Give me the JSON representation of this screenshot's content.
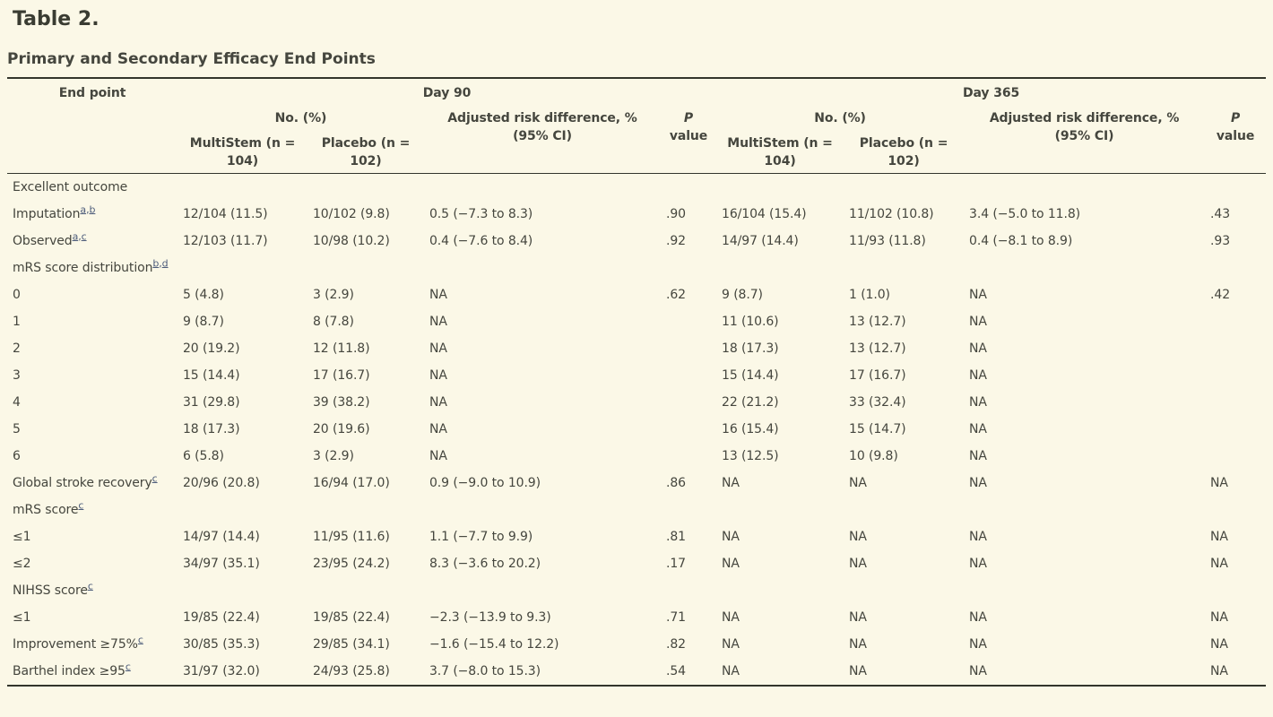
{
  "page": {
    "title": "Table 2.",
    "subtitle": "Primary and Secondary Efficacy End Points"
  },
  "colors": {
    "background": "#fbf8e7",
    "text": "#45463e",
    "rule": "#33352c",
    "footnote_link": "#4f5e7c"
  },
  "table": {
    "header": {
      "endpoint_label": "End point",
      "day90_label": "Day 90",
      "day365_label": "Day 365",
      "no_pct_label": "No. (%)",
      "ard_line1": "Adjusted risk difference, %",
      "ard_line2": "(95% CI)",
      "p_label": "P",
      "p_value_label": "value",
      "multistem_label": "MultiStem (n = 104)",
      "placebo_label": "Placebo (n = 102)"
    },
    "rows": [
      {
        "label": "Excellent outcome",
        "sup": "",
        "cells": [
          "",
          "",
          "",
          "",
          "",
          "",
          "",
          ""
        ]
      },
      {
        "label": "Imputation",
        "sup": "a,b",
        "cells": [
          "12/104 (11.5)",
          "10/102 (9.8)",
          "0.5 (−7.3 to 8.3)",
          ".90",
          "16/104 (15.4)",
          "11/102 (10.8)",
          "3.4 (−5.0 to 11.8)",
          ".43"
        ]
      },
      {
        "label": "Observed",
        "sup": "a,c",
        "cells": [
          "12/103 (11.7)",
          "10/98 (10.2)",
          "0.4 (−7.6 to 8.4)",
          ".92",
          "14/97 (14.4)",
          "11/93 (11.8)",
          "0.4 (−8.1 to 8.9)",
          ".93"
        ]
      },
      {
        "label": "mRS score distribution",
        "sup": "b,d",
        "cells": [
          "",
          "",
          "",
          "",
          "",
          "",
          "",
          ""
        ]
      },
      {
        "label": "0",
        "sup": "",
        "cells": [
          "5 (4.8)",
          "3 (2.9)",
          "NA",
          ".62",
          "9 (8.7)",
          "1 (1.0)",
          "NA",
          ".42"
        ]
      },
      {
        "label": "1",
        "sup": "",
        "cells": [
          "9 (8.7)",
          "8 (7.8)",
          "NA",
          "",
          "11 (10.6)",
          "13 (12.7)",
          "NA",
          ""
        ]
      },
      {
        "label": "2",
        "sup": "",
        "cells": [
          "20 (19.2)",
          "12 (11.8)",
          "NA",
          "",
          "18 (17.3)",
          "13 (12.7)",
          "NA",
          ""
        ]
      },
      {
        "label": "3",
        "sup": "",
        "cells": [
          "15 (14.4)",
          "17 (16.7)",
          "NA",
          "",
          "15 (14.4)",
          "17 (16.7)",
          "NA",
          ""
        ]
      },
      {
        "label": "4",
        "sup": "",
        "cells": [
          "31 (29.8)",
          "39 (38.2)",
          "NA",
          "",
          "22 (21.2)",
          "33 (32.4)",
          "NA",
          ""
        ]
      },
      {
        "label": "5",
        "sup": "",
        "cells": [
          "18 (17.3)",
          "20 (19.6)",
          "NA",
          "",
          "16 (15.4)",
          "15 (14.7)",
          "NA",
          ""
        ]
      },
      {
        "label": "6",
        "sup": "",
        "cells": [
          "6 (5.8)",
          "3 (2.9)",
          "NA",
          "",
          "13 (12.5)",
          "10 (9.8)",
          "NA",
          ""
        ]
      },
      {
        "label": "Global stroke recovery",
        "sup": "c",
        "cells": [
          "20/96 (20.8)",
          "16/94 (17.0)",
          "0.9 (−9.0 to 10.9)",
          ".86",
          "NA",
          "NA",
          "NA",
          "NA"
        ]
      },
      {
        "label": "mRS score",
        "sup": "c",
        "cells": [
          "",
          "",
          "",
          "",
          "",
          "",
          "",
          ""
        ]
      },
      {
        "label": "≤1",
        "sup": "",
        "cells": [
          "14/97 (14.4)",
          "11/95 (11.6)",
          "1.1 (−7.7 to 9.9)",
          ".81",
          "NA",
          "NA",
          "NA",
          "NA"
        ]
      },
      {
        "label": "≤2",
        "sup": "",
        "cells": [
          "34/97 (35.1)",
          "23/95 (24.2)",
          "8.3 (−3.6 to 20.2)",
          ".17",
          "NA",
          "NA",
          "NA",
          "NA"
        ]
      },
      {
        "label": "NIHSS score",
        "sup": "c",
        "cells": [
          "",
          "",
          "",
          "",
          "",
          "",
          "",
          ""
        ]
      },
      {
        "label": "≤1",
        "sup": "",
        "cells": [
          "19/85 (22.4)",
          "19/85 (22.4)",
          "−2.3 (−13.9 to 9.3)",
          ".71",
          "NA",
          "NA",
          "NA",
          "NA"
        ]
      },
      {
        "label": "Improvement ≥75%",
        "sup": "c",
        "cells": [
          "30/85 (35.3)",
          "29/85 (34.1)",
          "−1.6 (−15.4 to 12.2)",
          ".82",
          "NA",
          "NA",
          "NA",
          "NA"
        ]
      },
      {
        "label": "Barthel index ≥95",
        "sup": "c",
        "cells": [
          "31/97 (32.0)",
          "24/93 (25.8)",
          "3.7 (−8.0 to 15.3)",
          ".54",
          "NA",
          "NA",
          "NA",
          "NA"
        ]
      }
    ]
  }
}
